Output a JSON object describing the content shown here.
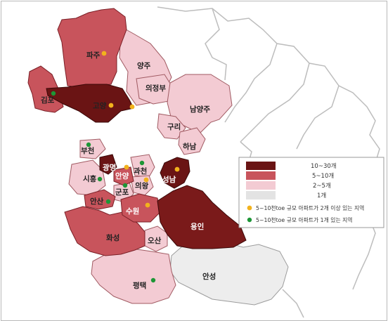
{
  "colors": {
    "level_10_30": "#6a1414",
    "level_5_10": "#c8545c",
    "level_2_5": "#f1c8cf",
    "level_1": "#e0e0e0",
    "border_outer": "#bcbcbc",
    "dot_yellow": "#f2b21d",
    "dot_green": "#1d9636"
  },
  "regions": {
    "paju": "파주",
    "gimpo": "김포",
    "goyang": "고양",
    "yangju": "양주",
    "uijeongbu": "의정부",
    "namyangju": "남양주",
    "guri": "구리",
    "hanam": "하남",
    "bucheon": "부천",
    "gwangmyeong": "광명",
    "anyang": "안양",
    "gwacheon": "과천",
    "siheung": "시흥",
    "seongnam": "성남",
    "gunpo": "군포",
    "uiwang": "의왕",
    "ansan": "안산",
    "suwon": "수원",
    "yongin": "용인",
    "hwaseong": "화성",
    "osan": "오산",
    "pyeongtaek": "평택",
    "anseong": "안성"
  },
  "legend": {
    "level_10_30": "10~30개",
    "level_5_10": "5~10개",
    "level_2_5": "2~5개",
    "level_1": "1개",
    "dot_yellow": "5~10천toe 규모 아파트가 2개 이상 있는 지역",
    "dot_green": "5~10천toe 규모 아파트가 1개 있는 지역"
  }
}
